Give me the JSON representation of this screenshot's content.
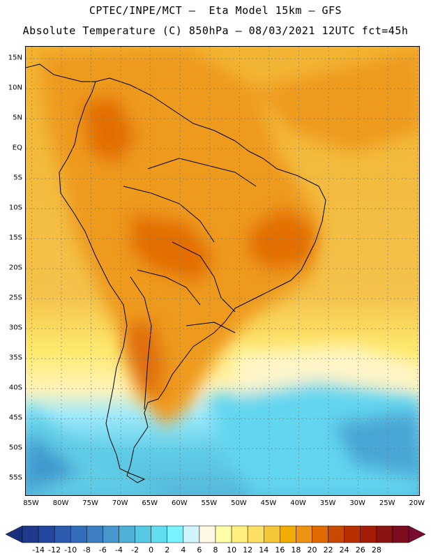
{
  "header": {
    "line1": "CPTEC/INPE/MCT –  Eta Model 15km – GFS",
    "line2": "Absolute Temperature (C) 850hPa – 08/03/2021 12UTC fct=45h"
  },
  "map": {
    "lat_range": [
      -58,
      17
    ],
    "lon_range": [
      -86,
      -19.5
    ],
    "lat_labels": [
      {
        "text": "15N",
        "lat": 15
      },
      {
        "text": "10N",
        "lat": 10
      },
      {
        "text": "5N",
        "lat": 5
      },
      {
        "text": "EQ",
        "lat": 0
      },
      {
        "text": "5S",
        "lat": -5
      },
      {
        "text": "10S",
        "lat": -10
      },
      {
        "text": "15S",
        "lat": -15
      },
      {
        "text": "20S",
        "lat": -20
      },
      {
        "text": "25S",
        "lat": -25
      },
      {
        "text": "30S",
        "lat": -30
      },
      {
        "text": "35S",
        "lat": -35
      },
      {
        "text": "40S",
        "lat": -40
      },
      {
        "text": "45S",
        "lat": -45
      },
      {
        "text": "50S",
        "lat": -50
      },
      {
        "text": "55S",
        "lat": -55
      }
    ],
    "lon_labels": [
      {
        "text": "85W",
        "lon": -85
      },
      {
        "text": "80W",
        "lon": -80
      },
      {
        "text": "75W",
        "lon": -75
      },
      {
        "text": "70W",
        "lon": -70
      },
      {
        "text": "65W",
        "lon": -65
      },
      {
        "text": "60W",
        "lon": -60
      },
      {
        "text": "55W",
        "lon": -55
      },
      {
        "text": "50W",
        "lon": -50
      },
      {
        "text": "45W",
        "lon": -45
      },
      {
        "text": "40W",
        "lon": -40
      },
      {
        "text": "35W",
        "lon": -35
      },
      {
        "text": "30W",
        "lon": -30
      },
      {
        "text": "25W",
        "lon": -25
      },
      {
        "text": "20W",
        "lon": -20
      }
    ],
    "gridlines": "dotted"
  },
  "colorbar": {
    "labels": [
      "-14",
      "-12",
      "-10",
      "-8",
      "-6",
      "-4",
      "-2",
      "0",
      "2",
      "4",
      "6",
      "8",
      "10",
      "12",
      "14",
      "16",
      "18",
      "20",
      "22",
      "24",
      "26",
      "28"
    ],
    "colors": [
      "#1e3a8a",
      "#23479e",
      "#2b5aaf",
      "#336db9",
      "#3c80c3",
      "#4796cc",
      "#4fb0d8",
      "#57c8e2",
      "#62dcef",
      "#78f3ff",
      "#d2f4ff",
      "#fff8e4",
      "#ffffa8",
      "#fff080",
      "#ffe066",
      "#f4c63a",
      "#f0ac00",
      "#ee9214",
      "#e06a00",
      "#c84a00",
      "#b83000",
      "#a41d08",
      "#8c1410",
      "#7c0c20"
    ],
    "under_color": "#1a2f7a",
    "over_color": "#7a0a30"
  }
}
